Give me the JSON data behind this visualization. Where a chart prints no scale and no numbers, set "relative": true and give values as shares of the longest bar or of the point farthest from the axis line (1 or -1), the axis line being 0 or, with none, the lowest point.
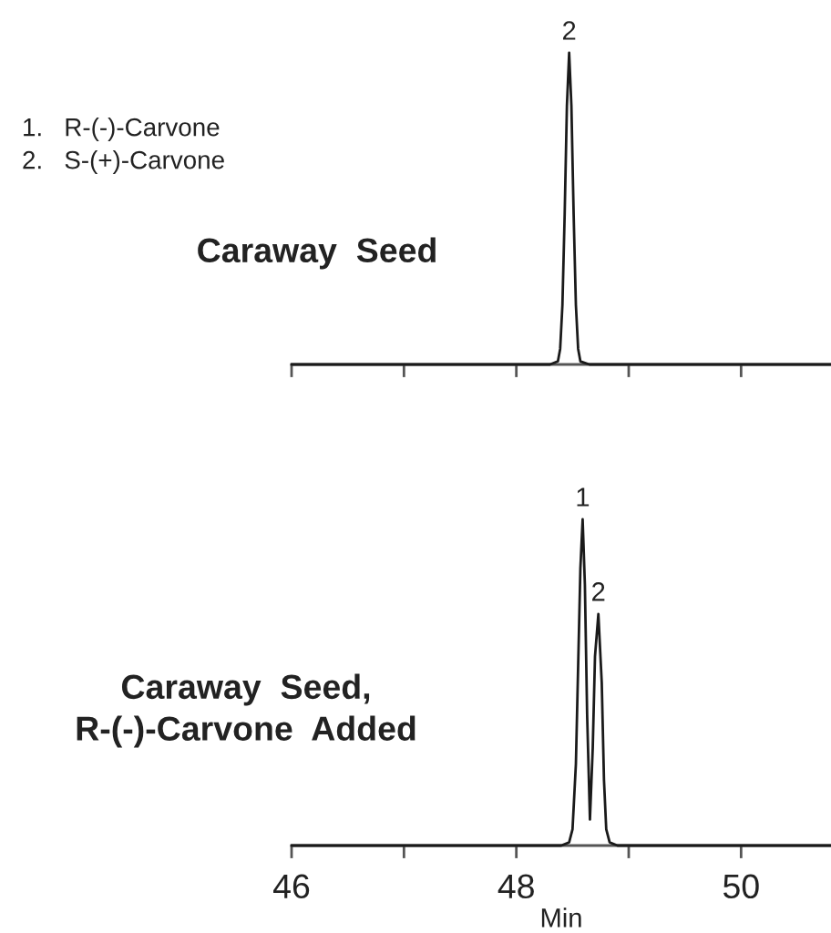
{
  "chart_data": [
    {
      "type": "line",
      "title": "Caraway  Seed",
      "relative": true,
      "xlim": [
        46,
        50.8
      ],
      "xticks": [
        46,
        47,
        48,
        49,
        50
      ],
      "tick_labels": false,
      "x": [
        46.0,
        46.5,
        47.0,
        47.5,
        48.0,
        48.3,
        48.37,
        48.39,
        48.41,
        48.43,
        48.45,
        48.47,
        48.49,
        48.51,
        48.53,
        48.55,
        48.57,
        48.65,
        49.0,
        49.5,
        50.0,
        50.5,
        50.8
      ],
      "series": [
        {
          "color": "#1a1a1a",
          "values": [
            0,
            0,
            0,
            0,
            0,
            0,
            0.01,
            0.05,
            0.19,
            0.48,
            0.83,
            1,
            0.83,
            0.48,
            0.19,
            0.05,
            0.01,
            0,
            0,
            0,
            0,
            0,
            0
          ]
        }
      ],
      "annotations": [
        {
          "text": "2",
          "x": 48.47,
          "y": 1
        },
        "1.   R-(-)-Carvone",
        "2.   S-(+)-Carvone"
      ]
    },
    {
      "type": "line",
      "title": "Caraway  Seed,\nR-(-)-Carvone  Added",
      "xlabel": "Min",
      "relative": true,
      "xlim": [
        46,
        50.8
      ],
      "xticks": [
        46,
        {
          "value": 47,
          "label": null
        },
        48,
        {
          "value": 49,
          "label": null
        },
        50
      ],
      "x": [
        46.0,
        46.5,
        47.0,
        47.5,
        48.0,
        48.4,
        48.47,
        48.5,
        48.53,
        48.55,
        48.57,
        48.59,
        48.61,
        48.63,
        48.655,
        48.68,
        48.7,
        48.73,
        48.76,
        48.78,
        48.8,
        48.83,
        48.9,
        49.5,
        50.0,
        50.5,
        50.8
      ],
      "series": [
        {
          "color": "#1a1a1a",
          "values": [
            0,
            0,
            0,
            0,
            0,
            0,
            0.01,
            0.05,
            0.25,
            0.55,
            0.85,
            1,
            0.8,
            0.4,
            0.08,
            0.3,
            0.58,
            0.71,
            0.5,
            0.2,
            0.05,
            0.01,
            0,
            0,
            0,
            0,
            0
          ]
        }
      ],
      "annotations": [
        {
          "text": "1",
          "x": 48.59,
          "y": 1
        },
        {
          "text": "2",
          "x": 48.73,
          "y": 0.71
        }
      ]
    }
  ]
}
